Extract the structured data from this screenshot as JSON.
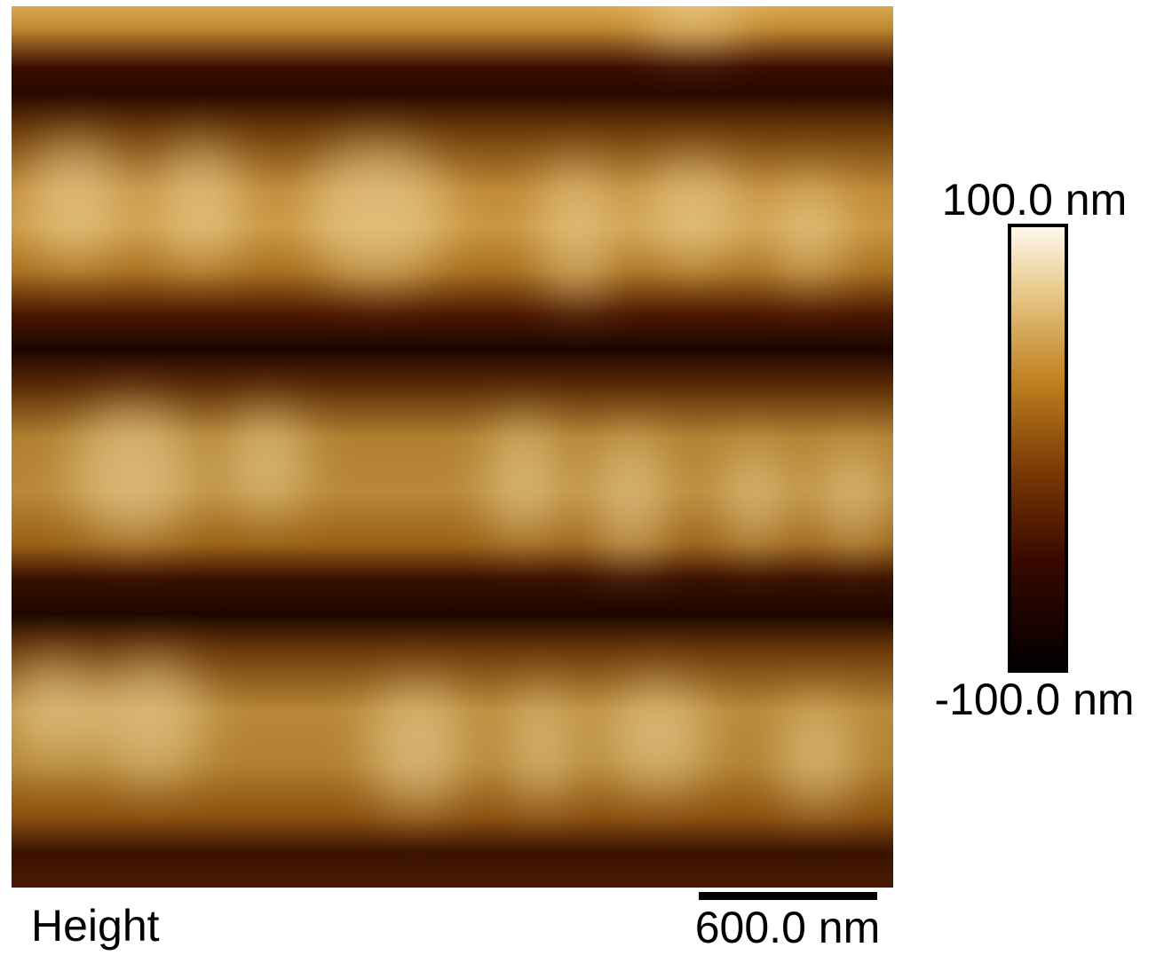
{
  "image": {
    "label": "Height"
  },
  "colorbar": {
    "max_label": "100.0 nm",
    "min_label": "-100.0 nm"
  },
  "scale_bar": {
    "label": "600.0 nm"
  }
}
